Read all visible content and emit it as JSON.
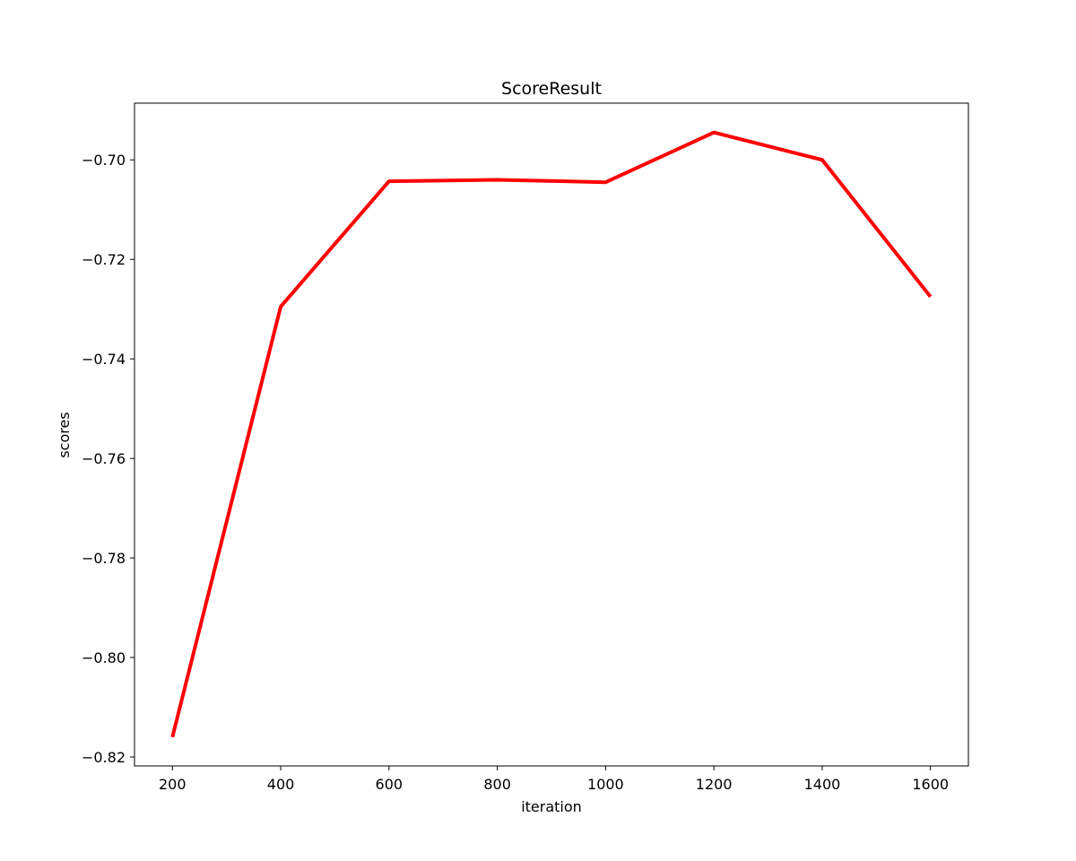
{
  "chart_data": {
    "type": "line",
    "title": "ScoreResult",
    "xlabel": "iteration",
    "ylabel": "scores",
    "x": [
      200,
      400,
      600,
      800,
      1000,
      1200,
      1400,
      1600
    ],
    "series": [
      {
        "color": "#ff0000",
        "values": [
          -0.816,
          -0.7295,
          -0.7043,
          -0.704,
          -0.7045,
          -0.6945,
          -0.7,
          -0.7275
        ]
      }
    ],
    "xlim": [
      130,
      1670
    ],
    "ylim": [
      -0.8218,
      -0.6886
    ],
    "xticks": [
      200,
      400,
      600,
      800,
      1000,
      1200,
      1400,
      1600
    ],
    "xtick_labels": [
      "200",
      "400",
      "600",
      "800",
      "1000",
      "1200",
      "1400",
      "1600"
    ],
    "yticks": [
      -0.82,
      -0.8,
      -0.78,
      -0.76,
      -0.74,
      -0.72,
      -0.7
    ],
    "ytick_labels": [
      "−0.82",
      "−0.80",
      "−0.78",
      "−0.76",
      "−0.74",
      "−0.72",
      "−0.70"
    ],
    "grid": false,
    "legend": "none"
  }
}
